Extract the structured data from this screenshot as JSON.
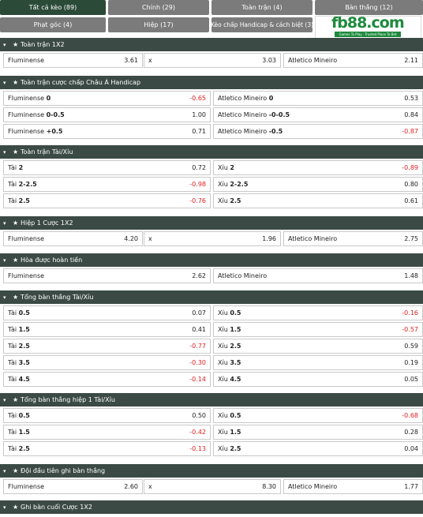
{
  "tabs": [
    {
      "label": "Tất cả kèo (89)",
      "active": true
    },
    {
      "label": "Chính (29)",
      "active": false
    },
    {
      "label": "Toàn trận (4)",
      "active": false
    },
    {
      "label": "Bàn thắng (12)",
      "active": false
    },
    {
      "label": "Phạt góc (4)",
      "active": false
    },
    {
      "label": "Hiệp (17)",
      "active": false
    },
    {
      "label": "Kèo chấp Handicap & cách biệt (3)",
      "active": false
    }
  ],
  "logo": {
    "text": "fb88.com",
    "tagline": "Games To Play · Trusted Place To Bet"
  },
  "sections": [
    {
      "title": "Toàn trận 1X2",
      "rows": [
        [
          {
            "l": "Fluminense",
            "v": "3.61"
          },
          {
            "l": "x",
            "v": "3.03"
          },
          {
            "l": "Atletico Mineiro",
            "v": "2.11"
          }
        ]
      ]
    },
    {
      "title": "Toàn trận cược chấp Châu Á Handicap",
      "rows": [
        [
          {
            "l": "Fluminense",
            "b": "0",
            "v": "-0.65"
          },
          {
            "l": "Atletico Mineiro",
            "b": "0",
            "v": "0.53"
          }
        ],
        [
          {
            "l": "Fluminense",
            "b": "0-0.5",
            "v": "1.00"
          },
          {
            "l": "Atletico Mineiro",
            "b": "-0-0.5",
            "v": "0.84"
          }
        ],
        [
          {
            "l": "Fluminense",
            "b": "+0.5",
            "v": "0.71"
          },
          {
            "l": "Atletico Mineiro",
            "b": "-0.5",
            "v": "-0.87"
          }
        ]
      ]
    },
    {
      "title": "Toàn trận Tài/Xỉu",
      "rows": [
        [
          {
            "l": "Tài",
            "b": "2",
            "v": "0.72"
          },
          {
            "l": "Xỉu",
            "b": "2",
            "v": "-0.89"
          }
        ],
        [
          {
            "l": "Tài",
            "b": "2-2.5",
            "v": "-0.98"
          },
          {
            "l": "Xỉu",
            "b": "2-2.5",
            "v": "0.80"
          }
        ],
        [
          {
            "l": "Tài",
            "b": "2.5",
            "v": "-0.76"
          },
          {
            "l": "Xỉu",
            "b": "2.5",
            "v": "0.61"
          }
        ]
      ]
    },
    {
      "title": "Hiệp 1 Cược 1X2",
      "rows": [
        [
          {
            "l": "Fluminense",
            "v": "4.20"
          },
          {
            "l": "x",
            "v": "1.96"
          },
          {
            "l": "Atletico Mineiro",
            "v": "2.75"
          }
        ]
      ]
    },
    {
      "title": "Hòa được hoàn tiền",
      "rows": [
        [
          {
            "l": "Fluminense",
            "v": "2.62"
          },
          {
            "l": "Atletico Mineiro",
            "v": "1.48"
          }
        ]
      ]
    },
    {
      "title": "Tổng bàn thắng Tài/Xỉu",
      "rows": [
        [
          {
            "l": "Tài",
            "b": "0.5",
            "v": "0.07"
          },
          {
            "l": "Xỉu",
            "b": "0.5",
            "v": "-0.16"
          }
        ],
        [
          {
            "l": "Tài",
            "b": "1.5",
            "v": "0.41"
          },
          {
            "l": "Xỉu",
            "b": "1.5",
            "v": "-0.57"
          }
        ],
        [
          {
            "l": "Tài",
            "b": "2.5",
            "v": "-0.77"
          },
          {
            "l": "Xỉu",
            "b": "2.5",
            "v": "0.59"
          }
        ],
        [
          {
            "l": "Tài",
            "b": "3.5",
            "v": "-0.30"
          },
          {
            "l": "Xỉu",
            "b": "3.5",
            "v": "0.19"
          }
        ],
        [
          {
            "l": "Tài",
            "b": "4.5",
            "v": "-0.14"
          },
          {
            "l": "Xỉu",
            "b": "4.5",
            "v": "0.05"
          }
        ]
      ]
    },
    {
      "title": "Tổng bàn thắng hiệp 1 Tài/Xỉu",
      "rows": [
        [
          {
            "l": "Tài",
            "b": "0.5",
            "v": "0.50"
          },
          {
            "l": "Xỉu",
            "b": "0.5",
            "v": "-0.68"
          }
        ],
        [
          {
            "l": "Tài",
            "b": "1.5",
            "v": "-0.42"
          },
          {
            "l": "Xỉu",
            "b": "1.5",
            "v": "0.28"
          }
        ],
        [
          {
            "l": "Tài",
            "b": "2.5",
            "v": "-0.13"
          },
          {
            "l": "Xỉu",
            "b": "2.5",
            "v": "0.04"
          }
        ]
      ]
    },
    {
      "title": "Đội đầu tiên ghi bàn thắng",
      "rows": [
        [
          {
            "l": "Fluminense",
            "v": "2.60"
          },
          {
            "l": "x",
            "v": "8.30"
          },
          {
            "l": "Atletico Mineiro",
            "v": "1.77"
          }
        ]
      ]
    },
    {
      "title": "Ghi bàn cuối Cược 1X2",
      "rows": []
    }
  ],
  "colors": {
    "header_bg": "#3b4a44",
    "tab_bg": "#7b7b7b",
    "tab_active": "#2b4a38",
    "negative": "#e02020"
  }
}
